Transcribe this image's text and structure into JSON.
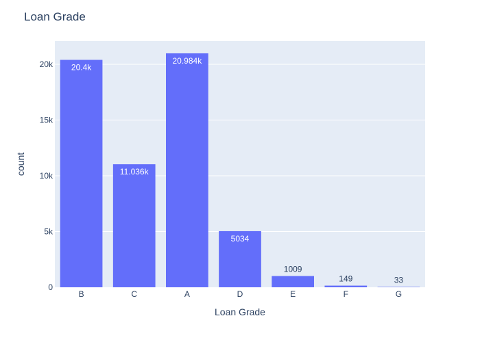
{
  "chart_data": {
    "type": "bar",
    "title": "Loan Grade",
    "xlabel": "Loan Grade",
    "ylabel": "count",
    "categories": [
      "B",
      "C",
      "A",
      "D",
      "E",
      "F",
      "G"
    ],
    "values": [
      20400,
      11036,
      20984,
      5034,
      1009,
      149,
      33
    ],
    "data_labels": [
      "20.4k",
      "11.036k",
      "20.984k",
      "5034",
      "1009",
      "149",
      "33"
    ],
    "ylim": [
      0,
      22088
    ],
    "yticks": [
      0,
      5000,
      10000,
      15000,
      20000
    ],
    "ytick_labels": [
      "0",
      "5k",
      "10k",
      "15k",
      "20k"
    ],
    "grid": true,
    "legend": "none",
    "colors": {
      "bar": "#636efa",
      "plot_background": "#e5ecf6",
      "gridline": "#ffffff",
      "text": "#2a3f5f"
    }
  }
}
